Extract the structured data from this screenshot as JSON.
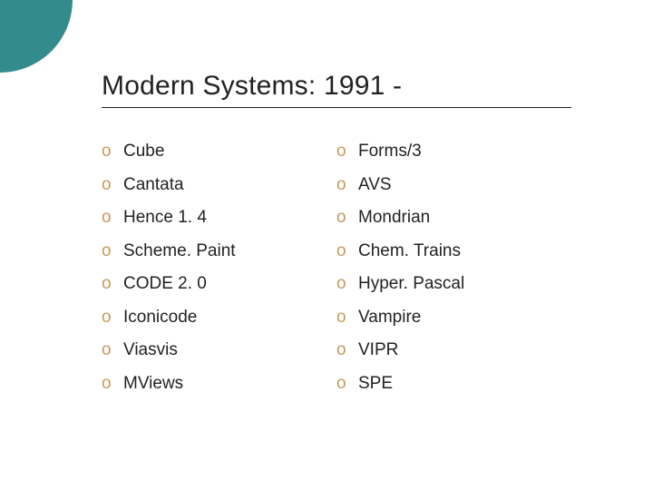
{
  "slide": {
    "title": "Modern Systems: 1991 -",
    "bullet_glyph": "o",
    "bullet_color": "#c79a5b",
    "decor_circle_color": "#348b8c",
    "title_color": "#222222",
    "text_color": "#222222",
    "underline_color": "#222222",
    "background_color": "#ffffff",
    "title_fontsize": 30,
    "item_fontsize": 19,
    "columns": [
      {
        "items": [
          "Cube",
          "Cantata",
          "Hence 1. 4",
          "Scheme. Paint",
          "CODE 2. 0",
          "Iconicode",
          "Viasvis",
          "MViews"
        ]
      },
      {
        "items": [
          "Forms/3",
          "AVS",
          "Mondrian",
          "Chem. Trains",
          "Hyper. Pascal",
          "Vampire",
          "VIPR",
          "SPE"
        ]
      }
    ]
  }
}
